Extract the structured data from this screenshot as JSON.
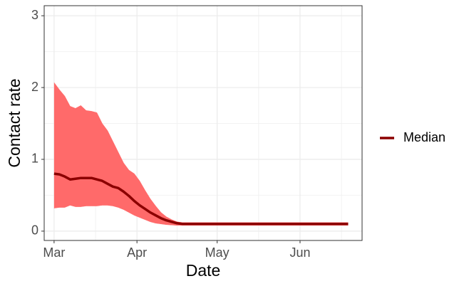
{
  "chart_data": {
    "type": "line",
    "x_label": "Date",
    "y_label": "Contact rate",
    "x": [
      0,
      2,
      4,
      6,
      8,
      10,
      12,
      14,
      16,
      18,
      20,
      22,
      24,
      26,
      28,
      30,
      32,
      34,
      36,
      38,
      40,
      42,
      44,
      46,
      48,
      60,
      70,
      80,
      90,
      100,
      110
    ],
    "series": [
      {
        "name": "Median",
        "color": "#8b0000",
        "values": [
          0.8,
          0.79,
          0.76,
          0.72,
          0.73,
          0.74,
          0.74,
          0.74,
          0.72,
          0.7,
          0.66,
          0.62,
          0.6,
          0.55,
          0.49,
          0.42,
          0.36,
          0.31,
          0.26,
          0.22,
          0.18,
          0.15,
          0.13,
          0.11,
          0.1,
          0.1,
          0.1,
          0.1,
          0.1,
          0.1,
          0.1
        ]
      }
    ],
    "band": {
      "color": "#ff6a6a",
      "upper": [
        2.07,
        1.97,
        1.88,
        1.74,
        1.71,
        1.75,
        1.68,
        1.67,
        1.65,
        1.5,
        1.4,
        1.25,
        1.1,
        0.95,
        0.85,
        0.8,
        0.7,
        0.57,
        0.45,
        0.35,
        0.26,
        0.2,
        0.16,
        0.13,
        0.12,
        0.12,
        0.12,
        0.12,
        0.12,
        0.12,
        0.12
      ],
      "lower": [
        0.32,
        0.33,
        0.33,
        0.36,
        0.34,
        0.34,
        0.35,
        0.35,
        0.35,
        0.36,
        0.36,
        0.35,
        0.33,
        0.3,
        0.26,
        0.22,
        0.19,
        0.16,
        0.13,
        0.11,
        0.1,
        0.09,
        0.085,
        0.08,
        0.08,
        0.08,
        0.08,
        0.08,
        0.08,
        0.08,
        0.08
      ]
    },
    "xlim": [
      -3.7,
      115.2
    ],
    "xticks": [
      {
        "value": 0,
        "label": "Mar"
      },
      {
        "value": 31,
        "label": "Apr"
      },
      {
        "value": 61,
        "label": "May"
      },
      {
        "value": 92,
        "label": "Jun"
      }
    ],
    "ylim": [
      -0.13,
      3.14
    ],
    "yticks": [
      0,
      1,
      2,
      3
    ],
    "grid": true,
    "minor_grid": true,
    "legend": "right"
  }
}
